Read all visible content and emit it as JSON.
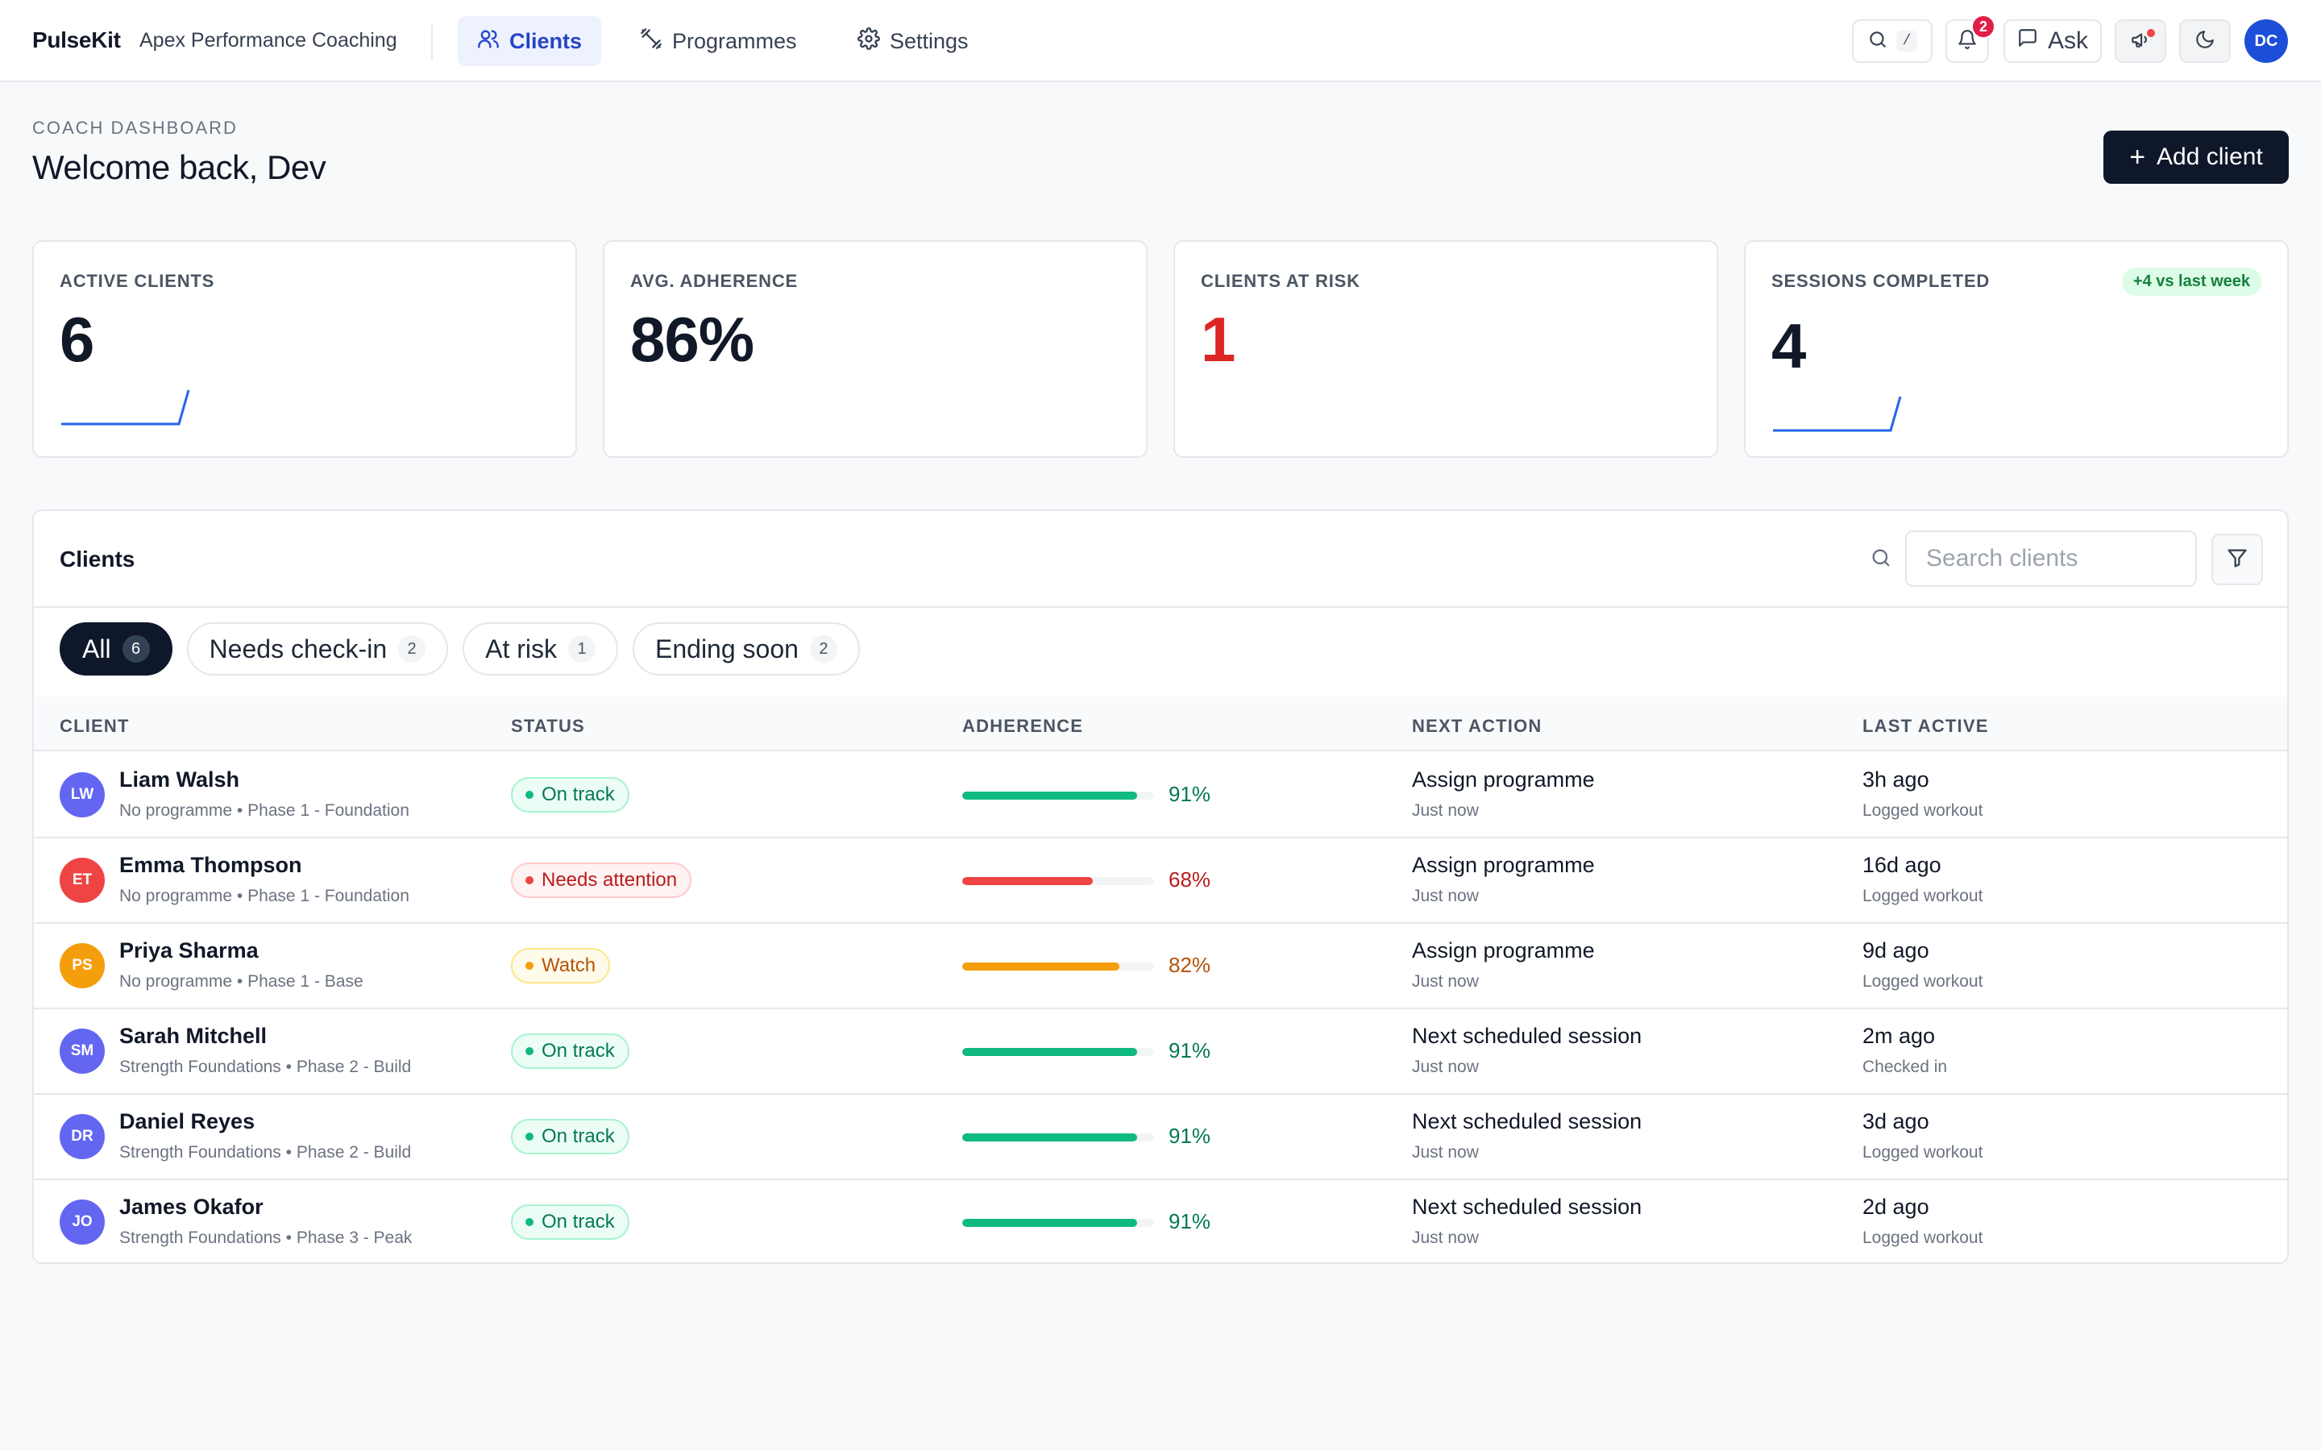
{
  "app": {
    "brand": "PulseKit",
    "org": "Apex Performance Coaching"
  },
  "nav": [
    {
      "label": "Clients",
      "icon": "users-icon",
      "active": true
    },
    {
      "label": "Programmes",
      "icon": "dumbbell-icon",
      "active": false
    },
    {
      "label": "Settings",
      "icon": "gear-icon",
      "active": false
    }
  ],
  "topbar": {
    "search_shortcut": "/",
    "notifications_count": "2",
    "ask_label": "Ask",
    "user_initials": "DC"
  },
  "header": {
    "eyebrow": "COACH DASHBOARD",
    "welcome": "Welcome back, Dev",
    "add_client_label": "Add client"
  },
  "stats": {
    "active_clients": {
      "label": "ACTIVE CLIENTS",
      "value": "6"
    },
    "avg_adherence": {
      "label": "AVG. ADHERENCE",
      "value": "86%"
    },
    "clients_at_risk": {
      "label": "CLIENTS AT RISK",
      "value": "1"
    },
    "sessions_completed": {
      "label": "SESSIONS COMPLETED",
      "value": "4",
      "delta": "+4 vs last week"
    }
  },
  "clients_panel": {
    "title": "Clients",
    "search_placeholder": "Search clients",
    "filters": [
      {
        "label": "All",
        "count": "6",
        "active": true
      },
      {
        "label": "Needs check-in",
        "count": "2",
        "active": false
      },
      {
        "label": "At risk",
        "count": "1",
        "active": false
      },
      {
        "label": "Ending soon",
        "count": "2",
        "active": false
      }
    ],
    "columns": [
      "CLIENT",
      "STATUS",
      "ADHERENCE",
      "NEXT ACTION",
      "LAST ACTIVE"
    ]
  },
  "colors": {
    "on_track": "#10b981",
    "needs_attention": "#ef4444",
    "watch": "#f59e0b",
    "accent": "#2545c9"
  },
  "rows": [
    {
      "initials": "LW",
      "avatar_color": "#6366f1",
      "name": "Liam Walsh",
      "programme": "No programme • Phase 1 - Foundation",
      "status": "On track",
      "status_kind": "on_track",
      "adherence": 0.91,
      "adherence_text": "91%",
      "next_action": "Assign programme",
      "next_action_sub": "Just now",
      "last_active": "3h ago",
      "last_active_sub": "Logged workout"
    },
    {
      "initials": "ET",
      "avatar_color": "#ef4444",
      "name": "Emma Thompson",
      "programme": "No programme • Phase 1 - Foundation",
      "status": "Needs attention",
      "status_kind": "needs_attention",
      "adherence": 0.68,
      "adherence_text": "68%",
      "next_action": "Assign programme",
      "next_action_sub": "Just now",
      "last_active": "16d ago",
      "last_active_sub": "Logged workout"
    },
    {
      "initials": "PS",
      "avatar_color": "#f59e0b",
      "name": "Priya Sharma",
      "programme": "No programme • Phase 1 - Base",
      "status": "Watch",
      "status_kind": "watch",
      "adherence": 0.82,
      "adherence_text": "82%",
      "next_action": "Assign programme",
      "next_action_sub": "Just now",
      "last_active": "9d ago",
      "last_active_sub": "Logged workout"
    },
    {
      "initials": "SM",
      "avatar_color": "#6366f1",
      "name": "Sarah Mitchell",
      "programme": "Strength Foundations • Phase 2 - Build",
      "status": "On track",
      "status_kind": "on_track",
      "adherence": 0.91,
      "adherence_text": "91%",
      "next_action": "Next scheduled session",
      "next_action_sub": "Just now",
      "last_active": "2m ago",
      "last_active_sub": "Checked in"
    },
    {
      "initials": "DR",
      "avatar_color": "#6366f1",
      "name": "Daniel Reyes",
      "programme": "Strength Foundations • Phase 2 - Build",
      "status": "On track",
      "status_kind": "on_track",
      "adherence": 0.91,
      "adherence_text": "91%",
      "next_action": "Next scheduled session",
      "next_action_sub": "Just now",
      "last_active": "3d ago",
      "last_active_sub": "Logged workout"
    },
    {
      "initials": "JO",
      "avatar_color": "#6366f1",
      "name": "James Okafor",
      "programme": "Strength Foundations • Phase 3 - Peak",
      "status": "On track",
      "status_kind": "on_track",
      "adherence": 0.91,
      "adherence_text": "91%",
      "next_action": "Next scheduled session",
      "next_action_sub": "Just now",
      "last_active": "2d ago",
      "last_active_sub": "Logged workout"
    }
  ]
}
